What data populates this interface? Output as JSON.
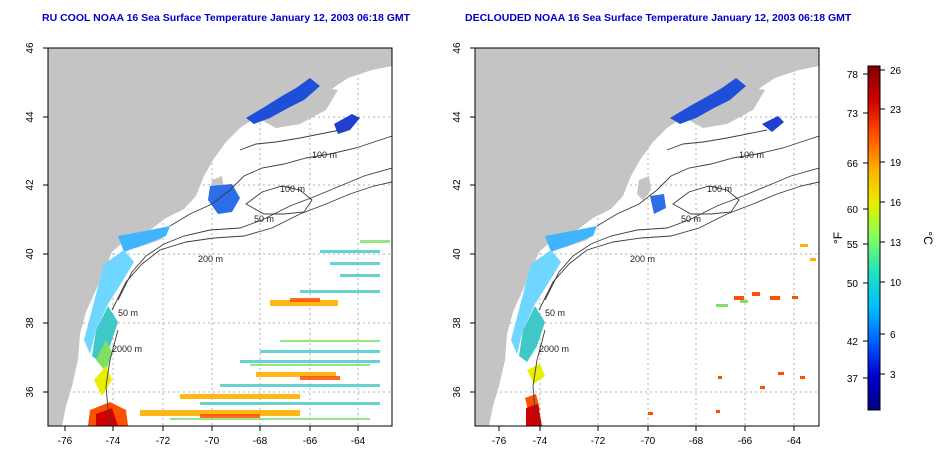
{
  "panels": [
    {
      "title": "RU COOL NOAA 16 Sea Surface Temperature January 12, 2003 06:18 GMT",
      "contour_labels": [
        "100 m",
        "100 m",
        "50 m",
        "200 m",
        "50 m",
        "2000 m"
      ]
    },
    {
      "title": "DECLOUDED NOAA 16 Sea Surface Temperature January 12, 2003 06:18 GMT",
      "contour_labels": [
        "100 m",
        "100 m",
        "50 m",
        "200 m",
        "50 m",
        "2000 m"
      ]
    }
  ],
  "axes": {
    "lon_ticks": [
      "-76",
      "-74",
      "-72",
      "-70",
      "-68",
      "-66",
      "-64"
    ],
    "lat_ticks": [
      "36",
      "38",
      "40",
      "42",
      "44",
      "46"
    ]
  },
  "colorbar": {
    "f_label": "°F",
    "c_label": "°C",
    "f_ticks": [
      "78",
      "73",
      "66",
      "60",
      "55",
      "50",
      "42",
      "37"
    ],
    "c_ticks": [
      "26",
      "23",
      "19",
      "16",
      "13",
      "10",
      "6",
      "3"
    ],
    "colors": [
      "#7f0000",
      "#d00000",
      "#ff5000",
      "#ffb000",
      "#e8f000",
      "#80ff60",
      "#20e0c0",
      "#00c0ff",
      "#0060ff",
      "#0000d0",
      "#00007f"
    ]
  },
  "colors": {
    "land": "#c4c4c4",
    "grid": "#b0b0b0",
    "contour": "#3c3c3c",
    "title": "#0000c8"
  }
}
